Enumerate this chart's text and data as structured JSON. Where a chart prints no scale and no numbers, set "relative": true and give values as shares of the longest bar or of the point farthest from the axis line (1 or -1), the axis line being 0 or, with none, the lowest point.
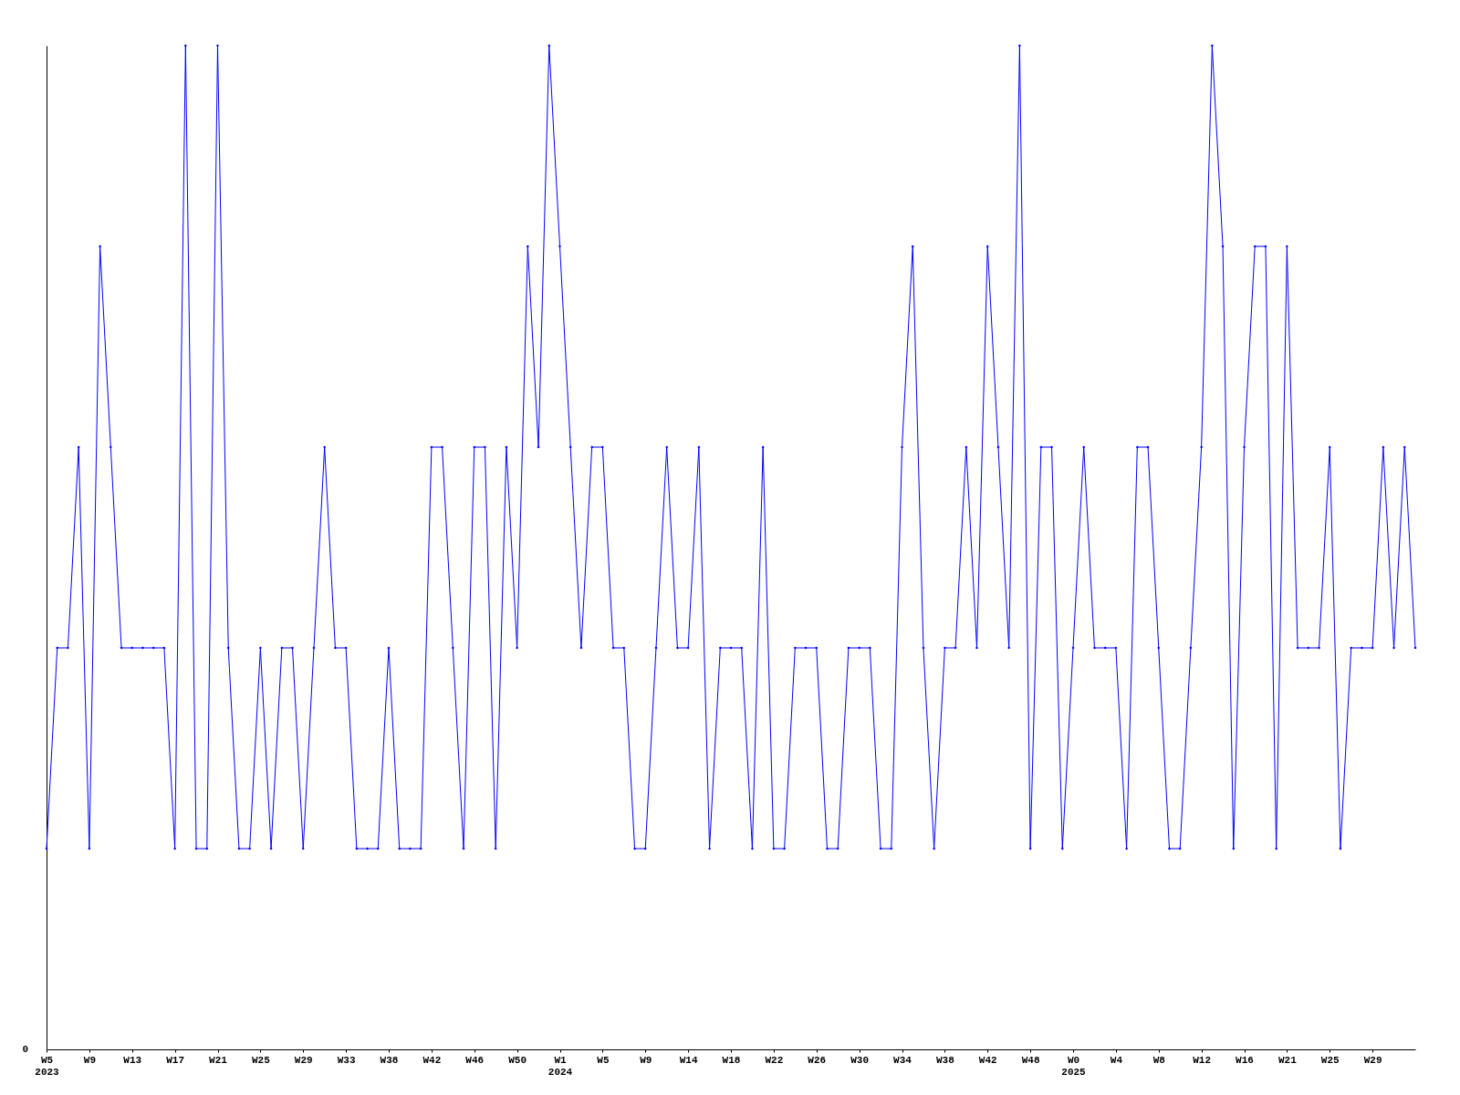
{
  "chart_data": {
    "type": "line",
    "relative": true,
    "marker": "diamond",
    "line_style": "solid",
    "grid": false,
    "annotations": [
      "0"
    ],
    "categories": [
      "W5\n2023",
      null,
      null,
      null,
      "W9",
      null,
      null,
      null,
      "W13",
      null,
      null,
      null,
      "W17",
      null,
      null,
      null,
      "W21",
      null,
      null,
      null,
      "W25",
      null,
      null,
      null,
      "W29",
      null,
      null,
      null,
      "W33",
      null,
      null,
      null,
      "W38",
      null,
      null,
      null,
      "W42",
      null,
      null,
      null,
      "W46",
      null,
      null,
      null,
      "W50",
      null,
      null,
      null,
      "W1\n2024",
      null,
      null,
      null,
      "W5",
      null,
      null,
      null,
      "W9",
      null,
      null,
      null,
      "W14",
      null,
      null,
      null,
      "W18",
      null,
      null,
      null,
      "W22",
      null,
      null,
      null,
      "W26",
      null,
      null,
      null,
      "W30",
      null,
      null,
      null,
      "W34",
      null,
      null,
      null,
      "W38",
      null,
      null,
      null,
      "W42",
      null,
      null,
      null,
      "W48",
      null,
      null,
      null,
      "W0\n2025",
      null,
      null,
      null,
      "W4",
      null,
      null,
      null,
      "W8",
      null,
      null,
      null,
      "W12",
      null,
      null,
      null,
      "W16",
      null,
      null,
      null,
      "W21",
      null,
      null,
      null,
      "W25",
      null,
      null,
      null,
      "W29",
      null,
      null,
      null,
      null
    ],
    "series": [
      {
        "color": "#0000ff",
        "values": [
          0.2,
          0.4,
          0.4,
          0.6,
          0.2,
          0.8,
          0.6,
          0.4,
          0.4,
          0.4,
          0.4,
          0.4,
          0.2,
          1.0,
          0.2,
          0.2,
          1.0,
          0.4,
          0.2,
          0.2,
          0.4,
          0.2,
          0.4,
          0.4,
          0.2,
          0.4,
          0.6,
          0.4,
          0.4,
          0.2,
          0.2,
          0.2,
          0.4,
          0.2,
          0.2,
          0.2,
          0.6,
          0.6,
          0.4,
          0.2,
          0.6,
          0.6,
          0.2,
          0.6,
          0.4,
          0.8,
          0.6,
          1.0,
          0.8,
          0.6,
          0.4,
          0.6,
          0.6,
          0.4,
          0.4,
          0.2,
          0.2,
          0.4,
          0.6,
          0.4,
          0.4,
          0.6,
          0.2,
          0.4,
          0.4,
          0.4,
          0.2,
          0.6,
          0.2,
          0.2,
          0.4,
          0.4,
          0.4,
          0.2,
          0.2,
          0.4,
          0.4,
          0.4,
          0.2,
          0.2,
          0.6,
          0.8,
          0.4,
          0.2,
          0.4,
          0.4,
          0.6,
          0.4,
          0.8,
          0.6,
          0.4,
          1.0,
          0.2,
          0.6,
          0.6,
          0.2,
          0.4,
          0.6,
          0.4,
          0.4,
          0.4,
          0.2,
          0.6,
          0.6,
          0.4,
          0.2,
          0.2,
          0.4,
          0.6,
          1.0,
          0.8,
          0.2,
          0.6,
          0.8,
          0.8,
          0.2,
          0.8,
          0.4,
          0.4,
          0.4,
          0.6,
          0.2,
          0.4,
          0.4,
          0.4,
          0.6,
          0.4,
          0.6,
          0.4
        ]
      }
    ]
  }
}
